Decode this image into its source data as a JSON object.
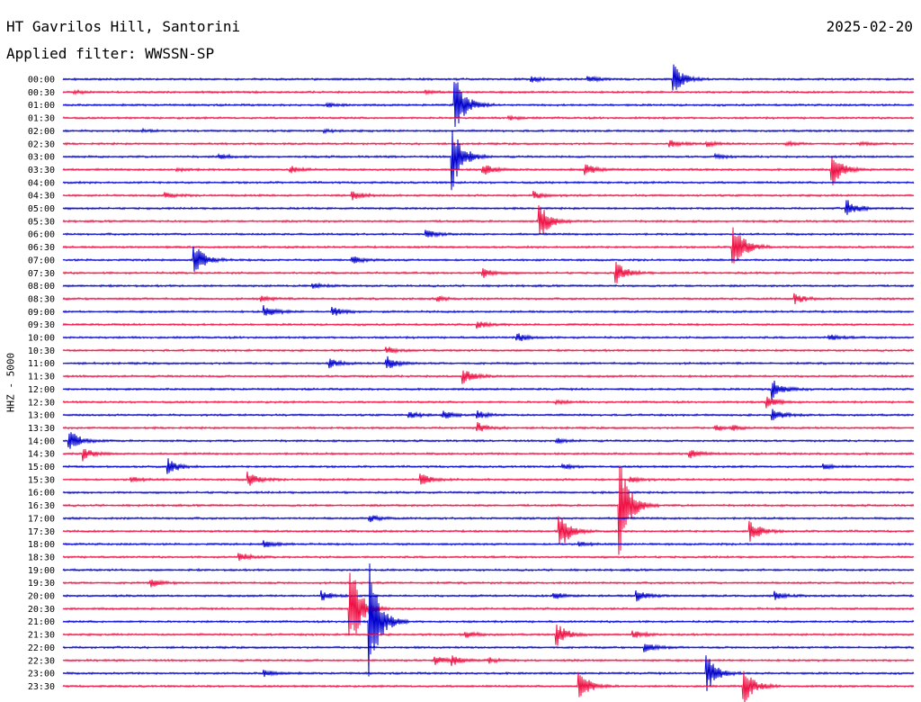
{
  "header": {
    "station": "HT Gavrilos Hill, Santorini",
    "date": "2025-02-20",
    "filter": "Applied filter: WWSSN-SP",
    "channel": "HHZ - 5000"
  },
  "colors": {
    "even_trace": "#0000cc",
    "odd_trace": "#ee1144",
    "background": "#ffffff",
    "text": "#000000"
  },
  "chart_data": {
    "type": "line",
    "chart_kind": "helicorder seismogram",
    "x_minutes_per_line": 30,
    "y_ticks": [
      "00:00",
      "00:30",
      "01:00",
      "01:30",
      "02:00",
      "02:30",
      "03:00",
      "03:30",
      "04:00",
      "04:30",
      "05:00",
      "05:30",
      "06:00",
      "06:30",
      "07:00",
      "07:30",
      "08:00",
      "08:30",
      "09:00",
      "09:30",
      "10:00",
      "10:30",
      "11:00",
      "11:30",
      "12:00",
      "12:30",
      "13:00",
      "13:30",
      "14:00",
      "14:30",
      "15:00",
      "15:30",
      "16:00",
      "16:30",
      "17:00",
      "17:30",
      "18:00",
      "18:30",
      "19:00",
      "19:30",
      "20:00",
      "20:30",
      "21:00",
      "21:30",
      "22:00",
      "22:30",
      "23:00",
      "23:30"
    ],
    "events": [
      {
        "line": 0,
        "minute": 16.5,
        "amplitude": 0.25
      },
      {
        "line": 0,
        "minute": 18.5,
        "amplitude": 0.25
      },
      {
        "line": 0,
        "minute": 21.5,
        "amplitude": 1.3
      },
      {
        "line": 1,
        "minute": 0.4,
        "amplitude": 0.12
      },
      {
        "line": 1,
        "minute": 12.8,
        "amplitude": 0.12
      },
      {
        "line": 2,
        "minute": 13.8,
        "amplitude": 2.7
      },
      {
        "line": 2,
        "minute": 9.3,
        "amplitude": 0.15
      },
      {
        "line": 3,
        "minute": 15.7,
        "amplitude": 0.15
      },
      {
        "line": 4,
        "minute": 9.2,
        "amplitude": 0.12
      },
      {
        "line": 4,
        "minute": 2.8,
        "amplitude": 0.1
      },
      {
        "line": 5,
        "minute": 21.4,
        "amplitude": 0.3
      },
      {
        "line": 5,
        "minute": 22.7,
        "amplitude": 0.2
      },
      {
        "line": 5,
        "minute": 25.5,
        "amplitude": 0.15
      },
      {
        "line": 5,
        "minute": 28.1,
        "amplitude": 0.12
      },
      {
        "line": 6,
        "minute": 13.7,
        "amplitude": 3.1
      },
      {
        "line": 6,
        "minute": 5.5,
        "amplitude": 0.2
      },
      {
        "line": 6,
        "minute": 23.0,
        "amplitude": 0.15
      },
      {
        "line": 7,
        "minute": 8.0,
        "amplitude": 0.3
      },
      {
        "line": 7,
        "minute": 14.8,
        "amplitude": 0.5
      },
      {
        "line": 7,
        "minute": 18.4,
        "amplitude": 0.5
      },
      {
        "line": 7,
        "minute": 27.1,
        "amplitude": 1.4
      },
      {
        "line": 7,
        "minute": 4.0,
        "amplitude": 0.15
      },
      {
        "line": 9,
        "minute": 3.6,
        "amplitude": 0.2
      },
      {
        "line": 9,
        "minute": 10.2,
        "amplitude": 0.35
      },
      {
        "line": 9,
        "minute": 16.6,
        "amplitude": 0.3
      },
      {
        "line": 10,
        "minute": 27.6,
        "amplitude": 0.8
      },
      {
        "line": 11,
        "minute": 16.8,
        "amplitude": 1.5
      },
      {
        "line": 12,
        "minute": 12.8,
        "amplitude": 0.3
      },
      {
        "line": 13,
        "minute": 23.6,
        "amplitude": 2.5
      },
      {
        "line": 14,
        "minute": 4.6,
        "amplitude": 1.5
      },
      {
        "line": 14,
        "minute": 10.2,
        "amplitude": 0.3
      },
      {
        "line": 15,
        "minute": 14.8,
        "amplitude": 0.4
      },
      {
        "line": 15,
        "minute": 19.5,
        "amplitude": 0.9
      },
      {
        "line": 16,
        "minute": 8.8,
        "amplitude": 0.2
      },
      {
        "line": 17,
        "minute": 7.0,
        "amplitude": 0.2
      },
      {
        "line": 17,
        "minute": 13.2,
        "amplitude": 0.2
      },
      {
        "line": 17,
        "minute": 25.8,
        "amplitude": 0.4
      },
      {
        "line": 18,
        "minute": 7.1,
        "amplitude": 0.5
      },
      {
        "line": 18,
        "minute": 9.5,
        "amplitude": 0.4
      },
      {
        "line": 19,
        "minute": 14.6,
        "amplitude": 0.3
      },
      {
        "line": 20,
        "minute": 16.0,
        "amplitude": 0.35
      },
      {
        "line": 20,
        "minute": 27.0,
        "amplitude": 0.25
      },
      {
        "line": 21,
        "minute": 11.4,
        "amplitude": 0.3
      },
      {
        "line": 22,
        "minute": 9.4,
        "amplitude": 0.35
      },
      {
        "line": 22,
        "minute": 11.4,
        "amplitude": 0.6
      },
      {
        "line": 23,
        "minute": 14.1,
        "amplitude": 0.6
      },
      {
        "line": 24,
        "minute": 25.0,
        "amplitude": 0.85
      },
      {
        "line": 25,
        "minute": 24.8,
        "amplitude": 0.5
      },
      {
        "line": 25,
        "minute": 17.4,
        "amplitude": 0.15
      },
      {
        "line": 26,
        "minute": 12.2,
        "amplitude": 0.3
      },
      {
        "line": 26,
        "minute": 13.4,
        "amplitude": 0.3
      },
      {
        "line": 26,
        "minute": 14.6,
        "amplitude": 0.3
      },
      {
        "line": 26,
        "minute": 25.0,
        "amplitude": 0.5
      },
      {
        "line": 27,
        "minute": 14.6,
        "amplitude": 0.4
      },
      {
        "line": 27,
        "minute": 23.0,
        "amplitude": 0.2
      },
      {
        "line": 27,
        "minute": 23.6,
        "amplitude": 0.2
      },
      {
        "line": 28,
        "minute": 0.2,
        "amplitude": 1.0
      },
      {
        "line": 28,
        "minute": 17.4,
        "amplitude": 0.2
      },
      {
        "line": 29,
        "minute": 0.7,
        "amplitude": 0.5
      },
      {
        "line": 29,
        "minute": 22.1,
        "amplitude": 0.35
      },
      {
        "line": 30,
        "minute": 3.7,
        "amplitude": 0.6
      },
      {
        "line": 30,
        "minute": 17.6,
        "amplitude": 0.2
      },
      {
        "line": 30,
        "minute": 26.8,
        "amplitude": 0.2
      },
      {
        "line": 31,
        "minute": 2.4,
        "amplitude": 0.25
      },
      {
        "line": 31,
        "minute": 6.5,
        "amplitude": 0.6
      },
      {
        "line": 31,
        "minute": 12.6,
        "amplitude": 0.5
      },
      {
        "line": 31,
        "minute": 20.0,
        "amplitude": 0.25
      },
      {
        "line": 33,
        "minute": 19.6,
        "amplitude": 4.5
      },
      {
        "line": 34,
        "minute": 10.8,
        "amplitude": 0.3
      },
      {
        "line": 35,
        "minute": 17.5,
        "amplitude": 1.6
      },
      {
        "line": 35,
        "minute": 24.2,
        "amplitude": 1.0
      },
      {
        "line": 36,
        "minute": 7.1,
        "amplitude": 0.3
      },
      {
        "line": 36,
        "minute": 18.2,
        "amplitude": 0.2
      },
      {
        "line": 37,
        "minute": 6.2,
        "amplitude": 0.35
      },
      {
        "line": 39,
        "minute": 3.1,
        "amplitude": 0.3
      },
      {
        "line": 40,
        "minute": 9.1,
        "amplitude": 0.4
      },
      {
        "line": 40,
        "minute": 17.3,
        "amplitude": 0.3
      },
      {
        "line": 40,
        "minute": 20.2,
        "amplitude": 0.5
      },
      {
        "line": 40,
        "minute": 25.1,
        "amplitude": 0.3
      },
      {
        "line": 41,
        "minute": 10.1,
        "amplitude": 4.2
      },
      {
        "line": 42,
        "minute": 10.8,
        "amplitude": 5.0
      },
      {
        "line": 43,
        "minute": 14.2,
        "amplitude": 0.3
      },
      {
        "line": 43,
        "minute": 17.4,
        "amplitude": 1.0
      },
      {
        "line": 43,
        "minute": 20.1,
        "amplitude": 0.3
      },
      {
        "line": 44,
        "minute": 20.5,
        "amplitude": 0.4
      },
      {
        "line": 45,
        "minute": 13.1,
        "amplitude": 0.4
      },
      {
        "line": 45,
        "minute": 13.7,
        "amplitude": 0.35
      },
      {
        "line": 45,
        "minute": 15.0,
        "amplitude": 0.2
      },
      {
        "line": 46,
        "minute": 7.1,
        "amplitude": 0.25
      },
      {
        "line": 46,
        "minute": 22.7,
        "amplitude": 1.5
      },
      {
        "line": 47,
        "minute": 18.2,
        "amplitude": 1.3
      },
      {
        "line": 47,
        "minute": 24.0,
        "amplitude": 1.5
      }
    ]
  }
}
